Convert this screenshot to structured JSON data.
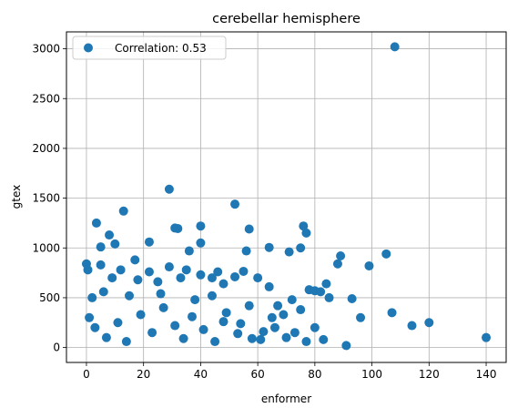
{
  "chart_data": {
    "type": "scatter",
    "title": "cerebellar hemisphere",
    "xlabel": "enformer",
    "ylabel": "gtex",
    "xlim": [
      -7,
      147
    ],
    "ylim": [
      -150,
      3170
    ],
    "xticks": [
      0,
      20,
      40,
      60,
      80,
      100,
      120,
      140
    ],
    "yticks": [
      0,
      500,
      1000,
      1500,
      2000,
      2500,
      3000
    ],
    "grid": true,
    "legend": {
      "position": "top-left",
      "entries": [
        "Correlation: 0.53"
      ]
    },
    "series": [
      {
        "name": "Correlation: 0.53",
        "color": "#1f77b4",
        "points": [
          [
            108,
            3020
          ],
          [
            29,
            1590
          ],
          [
            52,
            1440
          ],
          [
            13,
            1370
          ],
          [
            3.5,
            1250
          ],
          [
            40,
            1220
          ],
          [
            31,
            1200
          ],
          [
            32,
            1195
          ],
          [
            57,
            1190
          ],
          [
            76,
            1220
          ],
          [
            77,
            1150
          ],
          [
            8,
            1130
          ],
          [
            22,
            1060
          ],
          [
            10,
            1040
          ],
          [
            40,
            1050
          ],
          [
            5,
            1010
          ],
          [
            64,
            1005
          ],
          [
            71,
            960
          ],
          [
            56,
            970
          ],
          [
            36,
            970
          ],
          [
            75,
            1000
          ],
          [
            89,
            920
          ],
          [
            105,
            940
          ],
          [
            99,
            820
          ],
          [
            88,
            840
          ],
          [
            0,
            840
          ],
          [
            0.5,
            780
          ],
          [
            5,
            830
          ],
          [
            12,
            780
          ],
          [
            17,
            880
          ],
          [
            22,
            760
          ],
          [
            29,
            810
          ],
          [
            35,
            780
          ],
          [
            46,
            760
          ],
          [
            55,
            765
          ],
          [
            9,
            700
          ],
          [
            18,
            680
          ],
          [
            25,
            660
          ],
          [
            33,
            700
          ],
          [
            40,
            730
          ],
          [
            44,
            700
          ],
          [
            52,
            710
          ],
          [
            60,
            700
          ],
          [
            64,
            610
          ],
          [
            84,
            640
          ],
          [
            48,
            640
          ],
          [
            78,
            580
          ],
          [
            80,
            570
          ],
          [
            82,
            560
          ],
          [
            85,
            500
          ],
          [
            93,
            490
          ],
          [
            96,
            300
          ],
          [
            107,
            350
          ],
          [
            114,
            220
          ],
          [
            120,
            250
          ],
          [
            140,
            100
          ],
          [
            91,
            20
          ],
          [
            83,
            80
          ],
          [
            77,
            60
          ],
          [
            70,
            100
          ],
          [
            65,
            300
          ],
          [
            67,
            420
          ],
          [
            72,
            480
          ],
          [
            75,
            380
          ],
          [
            80,
            200
          ],
          [
            62,
            160
          ],
          [
            58,
            90
          ],
          [
            53,
            140
          ],
          [
            48,
            260
          ],
          [
            44,
            520
          ],
          [
            2,
            500
          ],
          [
            6,
            560
          ],
          [
            15,
            520
          ],
          [
            26,
            540
          ],
          [
            38,
            480
          ],
          [
            1,
            300
          ],
          [
            3,
            200
          ],
          [
            7,
            100
          ],
          [
            11,
            250
          ],
          [
            14,
            60
          ],
          [
            19,
            330
          ],
          [
            23,
            150
          ],
          [
            27,
            400
          ],
          [
            31,
            220
          ],
          [
            34,
            90
          ],
          [
            37,
            310
          ],
          [
            41,
            180
          ],
          [
            45,
            60
          ],
          [
            49,
            350
          ],
          [
            54,
            240
          ],
          [
            57,
            420
          ],
          [
            61,
            80
          ],
          [
            66,
            200
          ],
          [
            69,
            330
          ],
          [
            73,
            150
          ]
        ]
      }
    ]
  }
}
